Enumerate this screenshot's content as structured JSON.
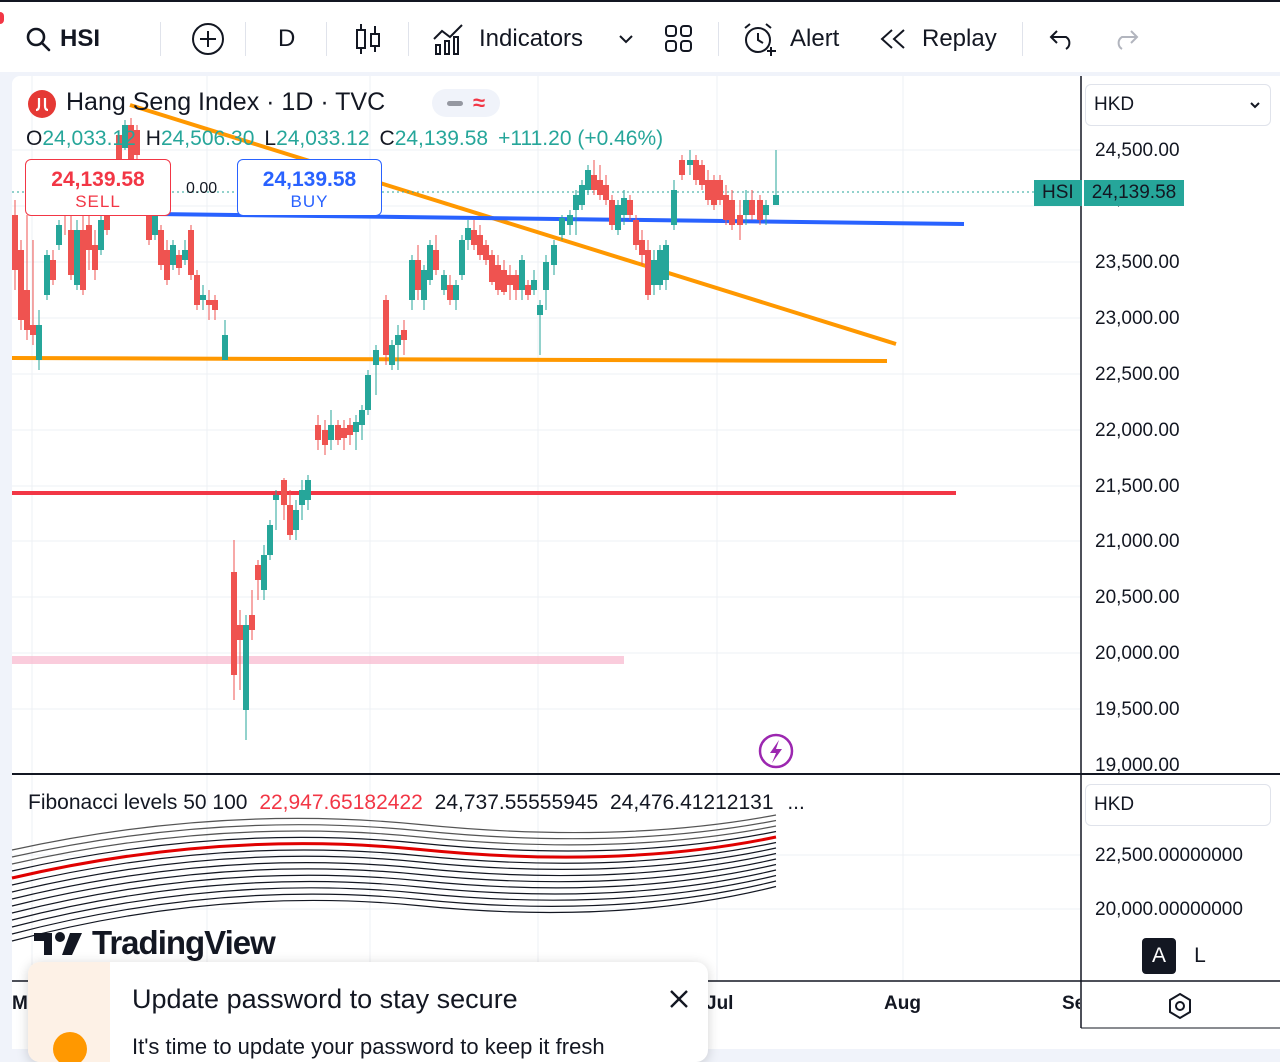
{
  "toolbar": {
    "symbol": "HSI",
    "interval": "D",
    "indicators_label": "Indicators",
    "alert_label": "Alert",
    "replay_label": "Replay"
  },
  "legend": {
    "title": "Hang Seng Index · 1D · TVC",
    "o_label": "O",
    "o_value": "24,033.12",
    "h_label": "H",
    "h_value": "24,506.30",
    "l_label": "L",
    "l_value": "24,033.12",
    "c_label": "C",
    "c_value": "24,139.58",
    "change": "+111.20 (+0.46%)"
  },
  "trade": {
    "sell_price": "24,139.58",
    "sell_label": "SELL",
    "spread": "0.00",
    "buy_price": "24,139.58",
    "buy_label": "BUY"
  },
  "price_axis": {
    "currency": "HKD",
    "ticks": [
      "24,500.00",
      "23,500.00",
      "23,000.00",
      "22,500.00",
      "22,000.00",
      "21,500.00",
      "21,000.00",
      "20,500.00",
      "20,000.00",
      "19,500.00",
      "19,000.00"
    ],
    "current_symbol": "HSI",
    "current_price": "24,139.58"
  },
  "indicator": {
    "title": "Fibonacci levels 50 100",
    "v1": "22,947.65182422",
    "v2": "24,737.55555945",
    "v3": "24,476.41212131",
    "more": "...",
    "currency": "HKD",
    "ticks": [
      "22,500.00000000",
      "20,000.00000000"
    ]
  },
  "time_axis": {
    "labels": [
      "M",
      "Jul",
      "Aug",
      "Se"
    ]
  },
  "scale_buttons": {
    "auto": "A",
    "log": "L"
  },
  "brand": "TradingView",
  "toast": {
    "title": "Update password to stay secure",
    "body": "It's time to update your password to keep it fresh"
  },
  "colors": {
    "up": "#26a69a",
    "down": "#ef5350",
    "orange": "#ff9800",
    "blue": "#2962ff",
    "red_line": "#f23645"
  }
}
